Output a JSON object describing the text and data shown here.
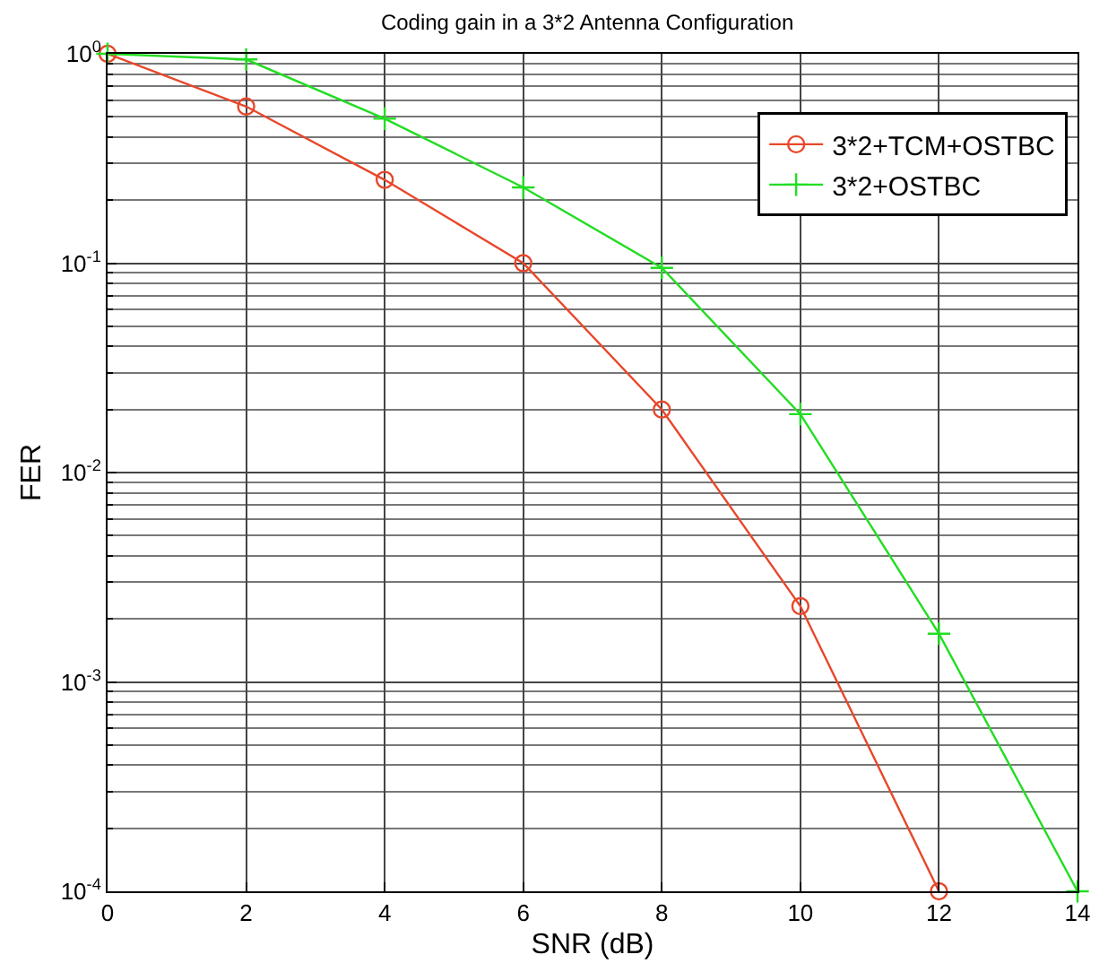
{
  "chart_data": {
    "type": "line",
    "title": "Coding gain in a 3*2 Antenna Configuration",
    "xlabel": "SNR (dB)",
    "ylabel": "FER",
    "series": [
      {
        "name": "3*2+TCM+OSTBC",
        "color": "#e8472a",
        "marker": "circle",
        "x": [
          0,
          2,
          4,
          6,
          8,
          10,
          12
        ],
        "values": [
          1,
          0.56,
          0.25,
          0.1,
          0.02,
          0.0023,
          0.0001
        ]
      },
      {
        "name": "3*2+OSTBC",
        "color": "#22dd22",
        "marker": "cross",
        "x": [
          0,
          2,
          4,
          6,
          8,
          10,
          12,
          14
        ],
        "values": [
          1,
          0.94,
          0.49,
          0.23,
          0.095,
          0.019,
          0.0017,
          0.0001
        ]
      }
    ],
    "xlim": [
      0,
      14
    ],
    "xticks": [
      0,
      2,
      4,
      6,
      8,
      10,
      12,
      14
    ],
    "ylim": [
      0.0001,
      1
    ],
    "yticks": [
      {
        "value": 0.0001,
        "label": "10$^{-4}$"
      },
      {
        "value": 0.001,
        "label": "10$^{-3}$"
      },
      {
        "value": 0.01,
        "label": "10$^{-2}$"
      },
      {
        "value": 0.1,
        "label": "10$^{-1}$"
      },
      {
        "value": 1,
        "label": "10$^{0}$"
      }
    ],
    "log": "y",
    "grid": true,
    "legend": "top right",
    "line_style": "solid"
  }
}
